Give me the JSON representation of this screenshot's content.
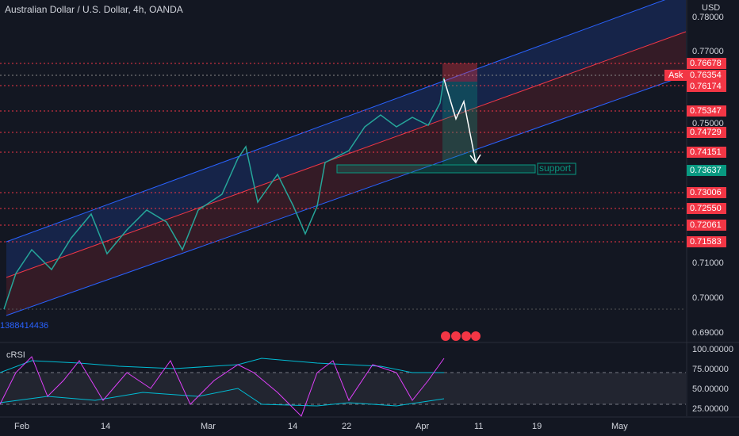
{
  "header": {
    "title": "Australian Dollar / U.S. Dollar, 4h, OANDA"
  },
  "price_axis": {
    "currency": "USD",
    "labels": [
      "0.78000",
      "0.77000",
      "0.75000",
      "0.71000",
      "0.70000",
      "0.69000"
    ]
  },
  "levels": [
    "0.76678",
    "0.76354",
    "0.76174",
    "0.75347",
    "0.74729",
    "0.74151",
    "0.73637",
    "0.73006",
    "0.72550",
    "0.72061",
    "0.71583"
  ],
  "ask_label": "Ask",
  "support_label": "support",
  "overlay_id": "1388414436",
  "x_axis": {
    "labels": [
      "Feb",
      "14",
      "Mar",
      "14",
      "22",
      "Apr",
      "11",
      "19",
      "May"
    ]
  },
  "rsi": {
    "name": "cRSI",
    "labels": [
      "100.00000",
      "75.00000",
      "50.00000",
      "25.00000"
    ]
  }
}
